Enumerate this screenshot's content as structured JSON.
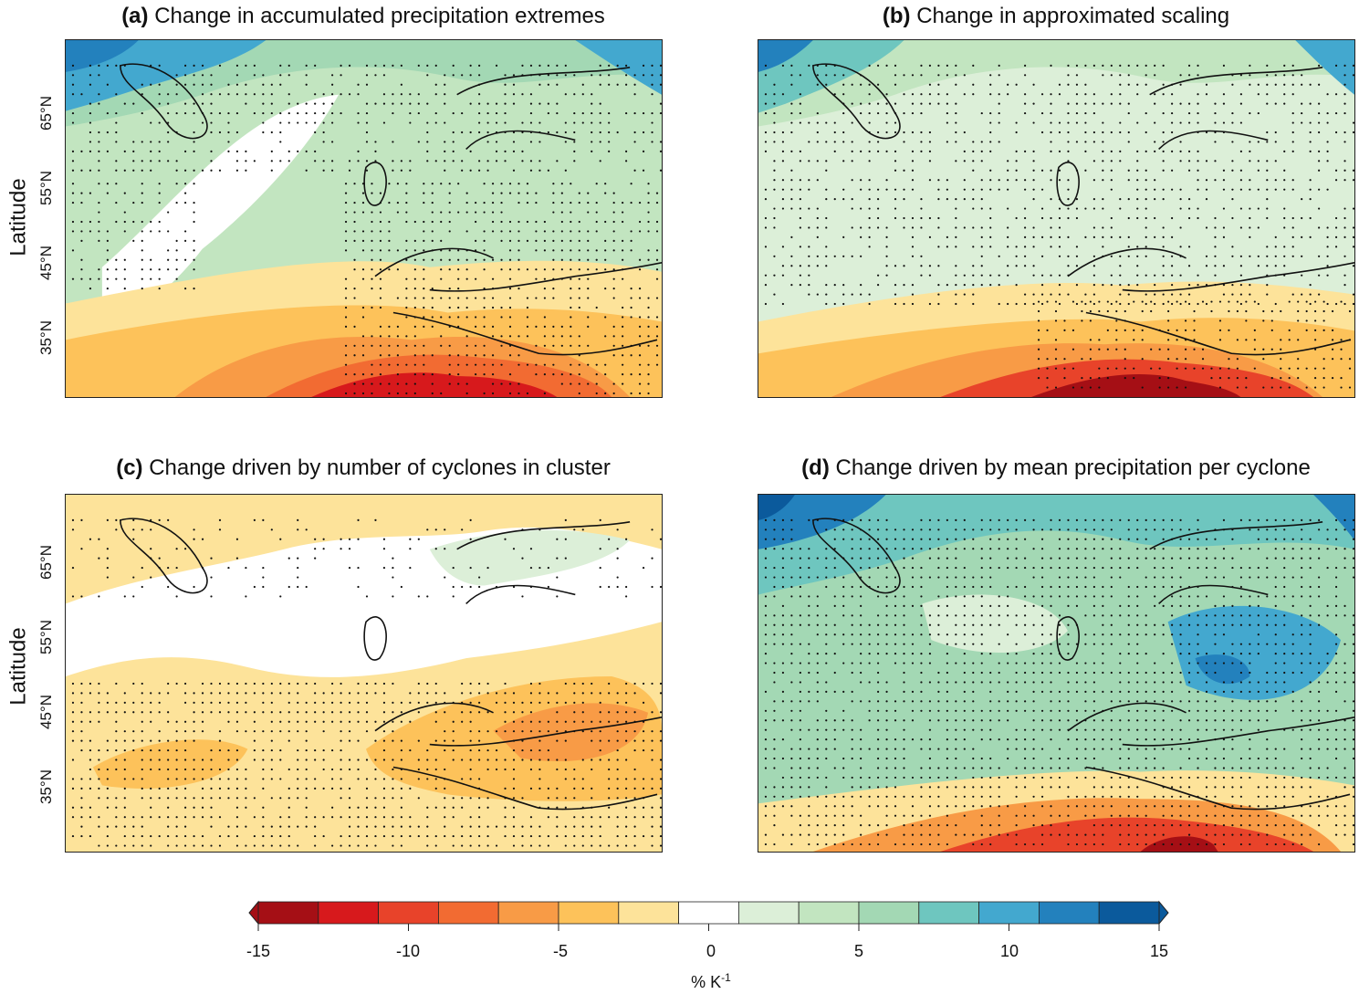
{
  "panels": [
    {
      "letter": "(a)",
      "title": "Change in accumulated precipitation extremes"
    },
    {
      "letter": "(b)",
      "title": "Change in approximated scaling"
    },
    {
      "letter": "(c)",
      "title": "Change driven by number of cyclones in cluster"
    },
    {
      "letter": "(d)",
      "title": "Change driven by mean precipitation per cyclone"
    }
  ],
  "axis": {
    "ylabel": "Latitude",
    "lat_ticks": [
      "65°N",
      "55°N",
      "45°N",
      "35°N"
    ]
  },
  "colorbar": {
    "ticks": [
      "-15",
      "-10",
      "-5",
      "0",
      "5",
      "10",
      "15"
    ],
    "unit_base": "% K",
    "unit_exp": "-1",
    "levels": [
      -15,
      -13,
      -11,
      -9,
      -7,
      -5,
      -3,
      -1,
      1,
      3,
      5,
      7,
      9,
      11,
      13,
      15
    ],
    "colors": [
      "#a50f15",
      "#d7191c",
      "#e8432a",
      "#f26b32",
      "#f89b46",
      "#fdc25a",
      "#fde39a",
      "#ffffff",
      "#dcefd8",
      "#c2e5c0",
      "#a3d8b4",
      "#6ec6bf",
      "#43a8cf",
      "#2381bd",
      "#0b5a9c"
    ]
  }
}
